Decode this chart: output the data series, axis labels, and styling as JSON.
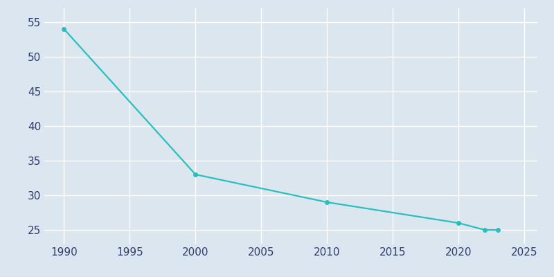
{
  "years": [
    1990,
    2000,
    2010,
    2020,
    2022,
    2023
  ],
  "values": [
    54,
    33,
    29,
    26,
    25,
    25
  ],
  "line_color": "#2abfbf",
  "marker_color": "#2abfbf",
  "background_color": "#dce6f0",
  "plot_background_color": "#dce6ef",
  "grid_color": "#ffffff",
  "tick_label_color": "#2e3d6b",
  "ylim": [
    23,
    57
  ],
  "xlim": [
    1988.5,
    2026
  ],
  "yticks": [
    25,
    30,
    35,
    40,
    45,
    50,
    55
  ],
  "xticks": [
    1990,
    1995,
    2000,
    2005,
    2010,
    2015,
    2020,
    2025
  ],
  "linewidth": 1.6,
  "markersize": 4,
  "title_color": "#2e3d6b",
  "title_fontsize": 13
}
